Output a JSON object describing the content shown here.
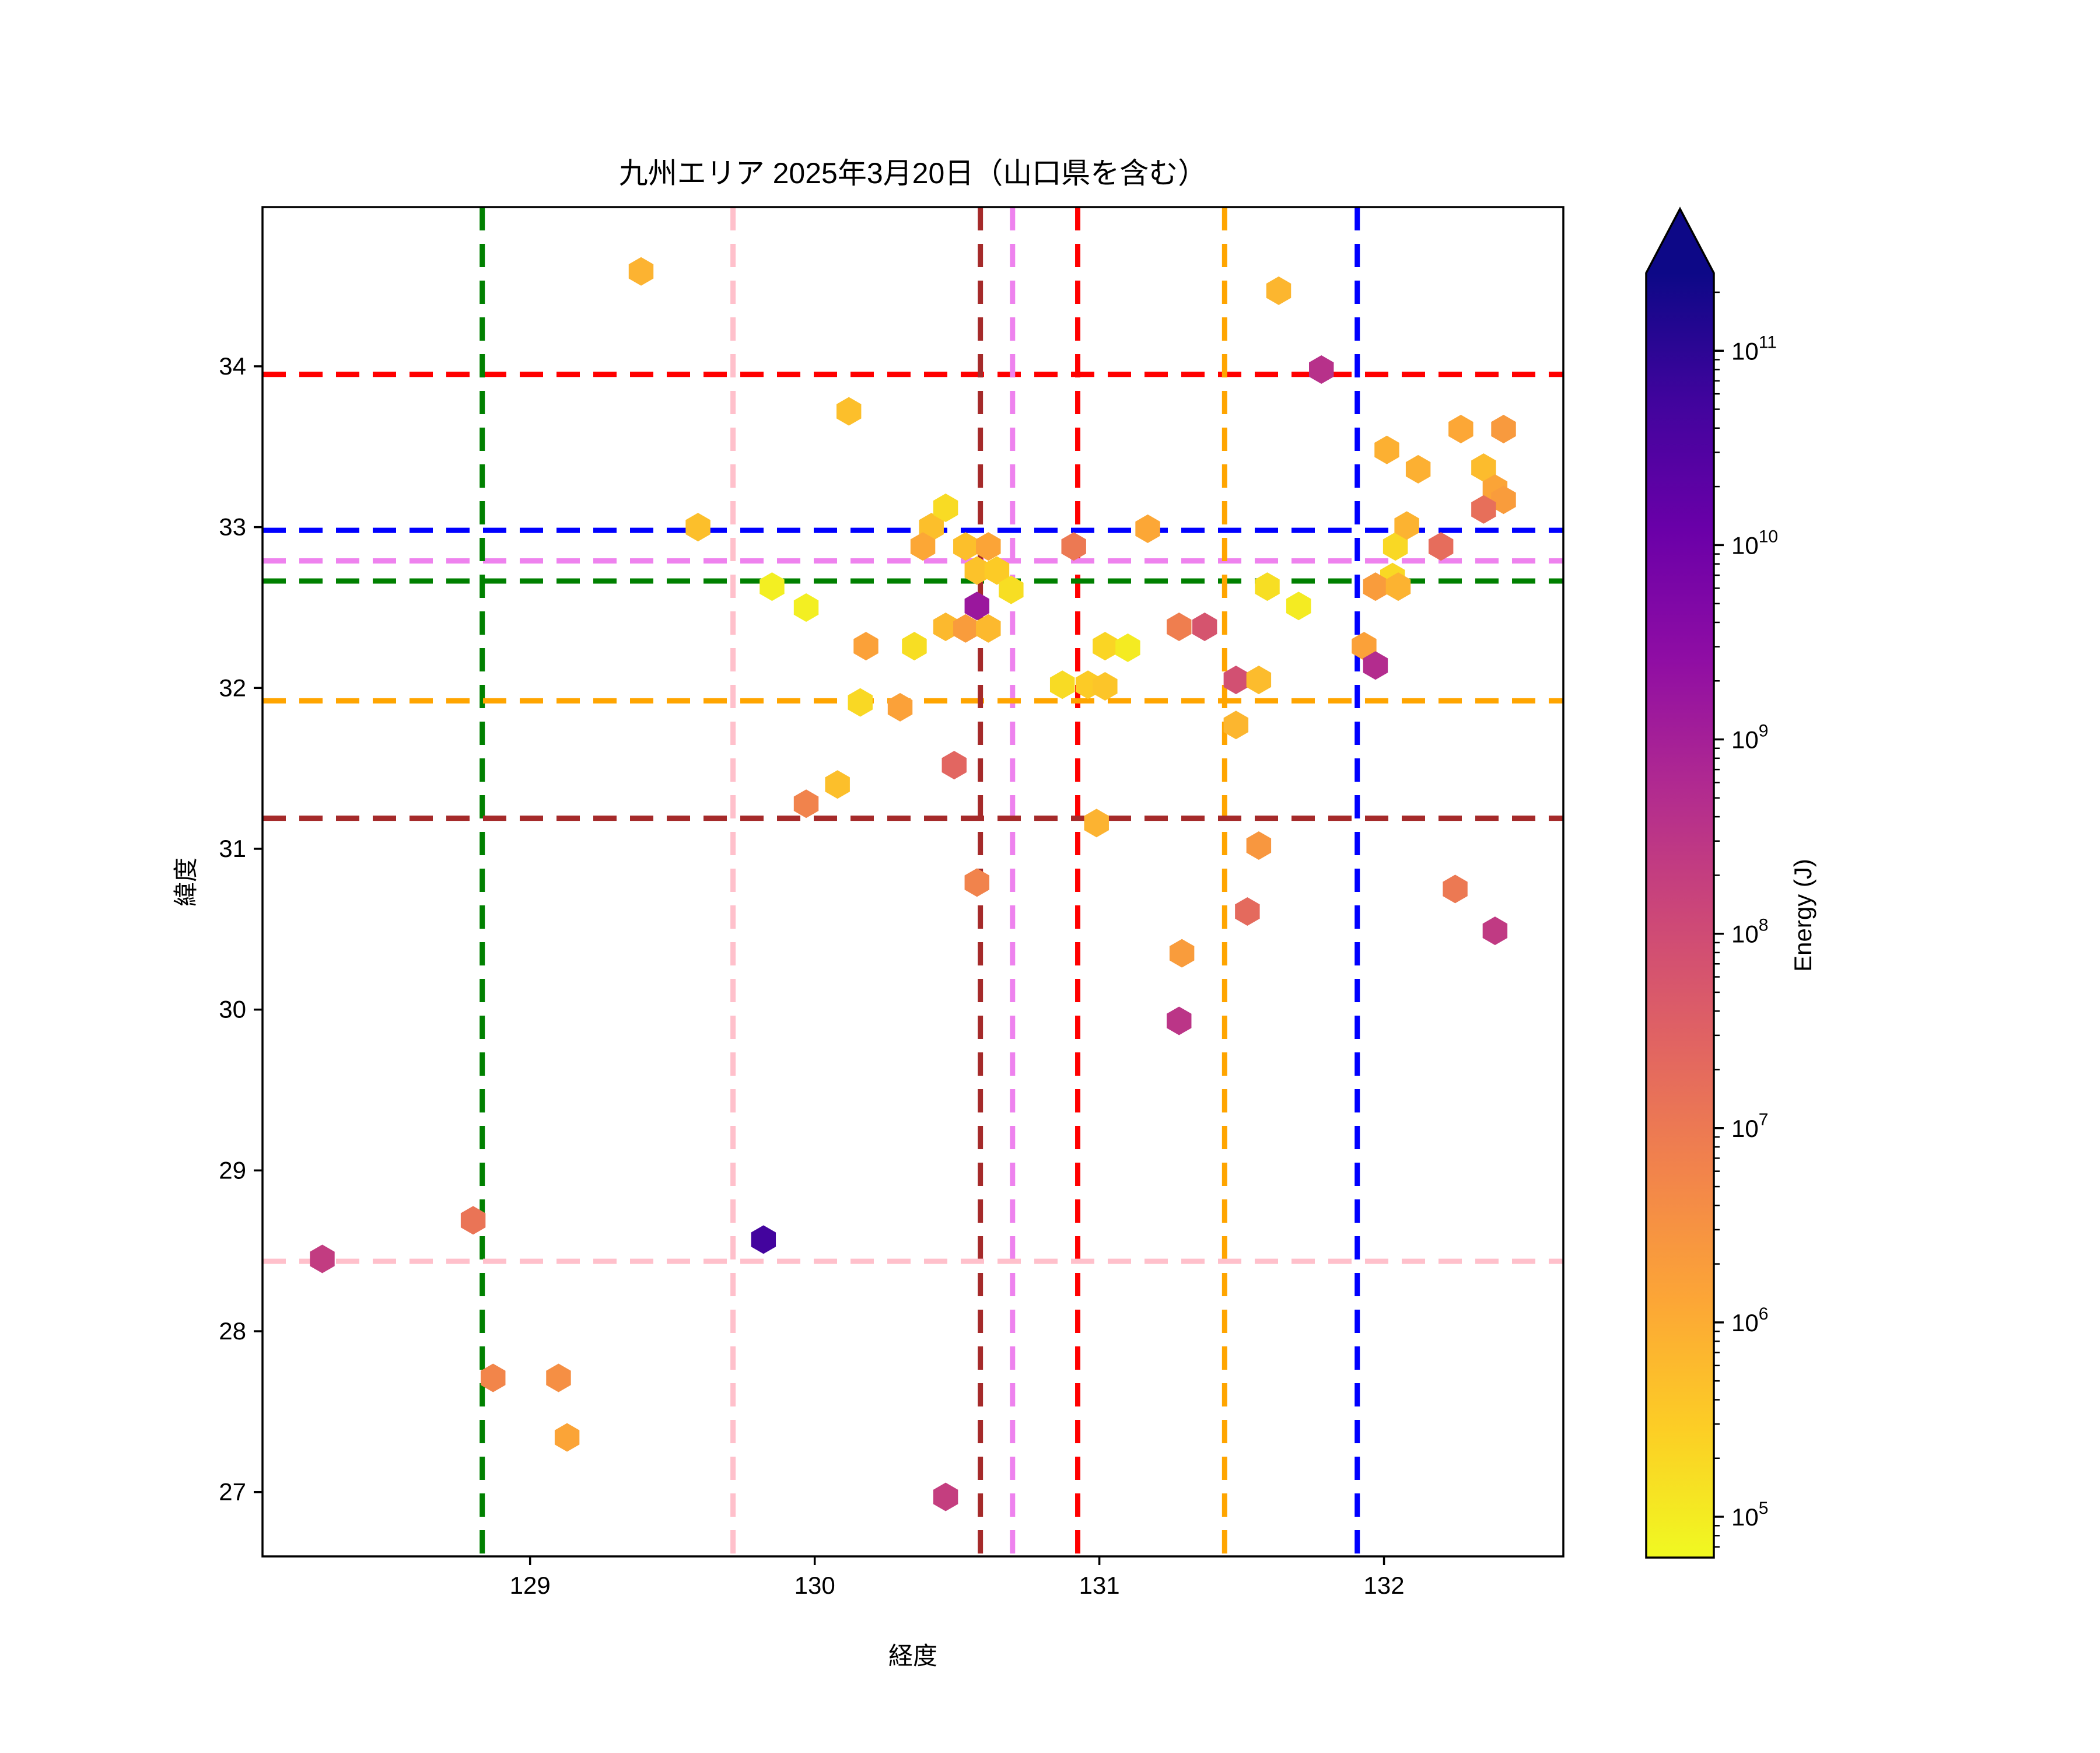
{
  "title": "九州エリア 2025年3月20日（山口県を含む）",
  "axes": {
    "xlabel": "経度",
    "ylabel": "緯度",
    "xlim": [
      128.06,
      132.63
    ],
    "ylim": [
      26.6,
      34.99
    ],
    "xticks": [
      "129",
      "130",
      "131",
      "132"
    ],
    "yticks": [
      "27",
      "28",
      "29",
      "30",
      "31",
      "32",
      "33",
      "34"
    ]
  },
  "colorbar": {
    "label": "Energy (J)",
    "colormap": "plasma_r",
    "scale": "log",
    "log_min": 4.79,
    "log_max": 11.4,
    "major_tick_exponents": [
      5,
      6,
      7,
      8,
      9,
      10,
      11
    ],
    "extend": "max"
  },
  "crosshairs": [
    {
      "name": "red",
      "color": "#ff0000",
      "lon": 130.924,
      "lat": 33.95
    },
    {
      "name": "blue",
      "color": "#0000ff",
      "lon": 131.906,
      "lat": 32.98
    },
    {
      "name": "violet",
      "color": "#ee82ee",
      "lon": 130.695,
      "lat": 32.79
    },
    {
      "name": "green",
      "color": "#008000",
      "lon": 128.832,
      "lat": 32.665
    },
    {
      "name": "orange",
      "color": "#ffa500",
      "lon": 131.44,
      "lat": 31.92
    },
    {
      "name": "brown",
      "color": "#a52a2a",
      "lon": 130.582,
      "lat": 31.19
    },
    {
      "name": "pink",
      "color": "#ffc0cb",
      "lon": 129.713,
      "lat": 28.435
    }
  ],
  "chart_data": {
    "type": "scatter",
    "marker": "hexagon",
    "value_label": "log10 Energy (J)",
    "points": [
      [
        129.39,
        34.59,
        5.9
      ],
      [
        131.63,
        34.47,
        5.85
      ],
      [
        131.78,
        33.98,
        8.6
      ],
      [
        130.12,
        33.72,
        5.7
      ],
      [
        132.27,
        33.61,
        6.1
      ],
      [
        132.42,
        33.61,
        6.35
      ],
      [
        132.01,
        33.48,
        5.95
      ],
      [
        132.12,
        33.36,
        5.95
      ],
      [
        132.35,
        33.37,
        5.75
      ],
      [
        132.39,
        33.24,
        6.15
      ],
      [
        132.42,
        33.17,
        6.3
      ],
      [
        132.35,
        33.11,
        7.2
      ],
      [
        129.59,
        33.0,
        5.7
      ],
      [
        130.41,
        33.0,
        5.7
      ],
      [
        130.46,
        33.12,
        5.25
      ],
      [
        130.38,
        32.88,
        6.1
      ],
      [
        130.53,
        32.88,
        5.7
      ],
      [
        130.61,
        32.88,
        6.15
      ],
      [
        131.17,
        32.99,
        6.1
      ],
      [
        130.91,
        32.88,
        7.0
      ],
      [
        132.04,
        32.88,
        5.3
      ],
      [
        132.08,
        33.01,
        5.9
      ],
      [
        132.2,
        32.88,
        7.25
      ],
      [
        130.57,
        32.73,
        5.65
      ],
      [
        130.64,
        32.73,
        5.5
      ],
      [
        130.69,
        32.61,
        5.2
      ],
      [
        129.85,
        32.63,
        4.95
      ],
      [
        129.97,
        32.5,
        4.95
      ],
      [
        130.18,
        32.26,
        6.2
      ],
      [
        130.35,
        32.26,
        5.2
      ],
      [
        130.46,
        32.38,
        5.8
      ],
      [
        130.53,
        32.37,
        6.3
      ],
      [
        130.61,
        32.37,
        5.8
      ],
      [
        130.57,
        32.51,
        9.2
      ],
      [
        131.59,
        32.63,
        5.2
      ],
      [
        131.7,
        32.51,
        5.0
      ],
      [
        131.28,
        32.38,
        6.9
      ],
      [
        131.37,
        32.38,
        7.8
      ],
      [
        131.02,
        32.26,
        5.35
      ],
      [
        131.1,
        32.25,
        5.0
      ],
      [
        132.03,
        32.69,
        5.3
      ],
      [
        131.97,
        32.63,
        6.3
      ],
      [
        132.05,
        32.63,
        5.9
      ],
      [
        130.16,
        31.91,
        5.3
      ],
      [
        130.3,
        31.88,
        6.2
      ],
      [
        130.87,
        32.02,
        5.25
      ],
      [
        130.96,
        32.02,
        5.5
      ],
      [
        131.02,
        32.01,
        5.6
      ],
      [
        131.48,
        32.05,
        7.9
      ],
      [
        131.56,
        32.05,
        5.75
      ],
      [
        131.48,
        31.77,
        5.85
      ],
      [
        131.93,
        32.26,
        6.2
      ],
      [
        131.97,
        32.14,
        8.7
      ],
      [
        130.49,
        31.52,
        7.4
      ],
      [
        130.08,
        31.4,
        5.7
      ],
      [
        129.97,
        31.28,
        6.8
      ],
      [
        130.99,
        31.16,
        5.9
      ],
      [
        131.56,
        31.02,
        6.4
      ],
      [
        130.57,
        30.79,
        6.8
      ],
      [
        132.25,
        30.75,
        7.0
      ],
      [
        131.52,
        30.61,
        7.3
      ],
      [
        132.39,
        30.49,
        8.4
      ],
      [
        131.29,
        30.35,
        6.3
      ],
      [
        131.28,
        29.93,
        8.5
      ],
      [
        128.8,
        28.69,
        7.1
      ],
      [
        129.82,
        28.57,
        10.7
      ],
      [
        128.27,
        28.45,
        8.35
      ],
      [
        128.87,
        27.71,
        6.75
      ],
      [
        129.1,
        27.71,
        6.55
      ],
      [
        129.13,
        27.34,
        6.15
      ],
      [
        130.46,
        26.97,
        8.3
      ]
    ]
  }
}
